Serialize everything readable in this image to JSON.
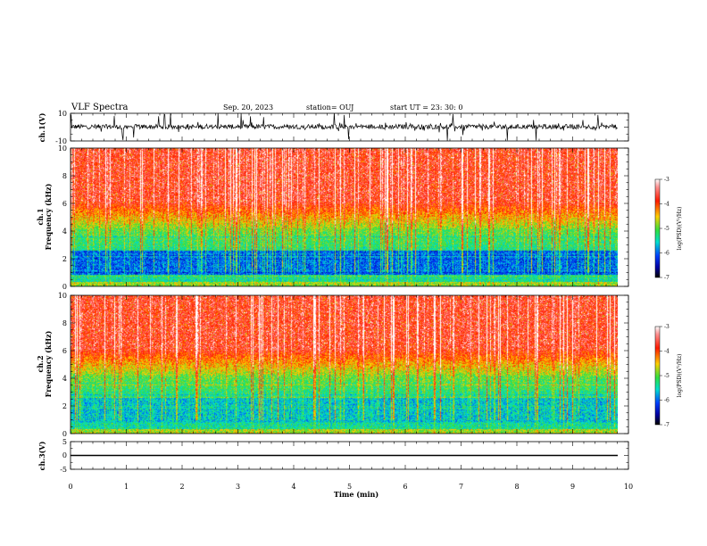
{
  "header": {
    "title": "VLF Spectra",
    "date": "Sep. 20, 2023",
    "station": "station= OUJ",
    "start": "start  UT  =   23: 30: 0"
  },
  "chart_data": [
    {
      "type": "line",
      "title": "",
      "ylabel": "ch.1(V)",
      "ylim": [
        -10,
        10
      ],
      "yticks": [
        "10",
        "-10"
      ],
      "xlim": [
        0,
        10
      ],
      "description_free": true,
      "trace": "noisy waveform around 0 V with spikes",
      "color": "#000000"
    },
    {
      "type": "heatmap",
      "ylabel": "ch.1 Frequency (kHz)",
      "ylabel_top": "ch.1",
      "ylabel_bottom": "Frequency (kHz)",
      "ylim": [
        0,
        10
      ],
      "yticks": [
        "0",
        "2",
        "4",
        "6",
        "8",
        "10"
      ],
      "xlim": [
        0,
        10
      ],
      "colorbar": {
        "label": "log(PSD)(V²/Hz)",
        "ticks": [
          "-3",
          "-4",
          "-5",
          "-6",
          "-7"
        ],
        "range": [
          -7,
          -3
        ]
      }
    },
    {
      "type": "heatmap",
      "ylabel": "ch.2 Frequency (kHz)",
      "ylabel_top": "ch.2",
      "ylabel_bottom": "Frequency (kHz)",
      "ylim": [
        0,
        10
      ],
      "yticks": [
        "0",
        "2",
        "4",
        "6",
        "8",
        "10"
      ],
      "xlim": [
        0,
        10
      ],
      "colorbar": {
        "label": "log(PSD)(V²/Hz)",
        "ticks": [
          "-3",
          "-4",
          "-5",
          "-6",
          "-7"
        ],
        "range": [
          -7,
          -3
        ]
      }
    },
    {
      "type": "line",
      "ylabel": "ch.3(V)",
      "ylim": [
        -5,
        5
      ],
      "yticks": [
        "5",
        "0",
        "-5"
      ],
      "xlim": [
        0,
        10
      ],
      "flat_value": 0,
      "color": "#000000"
    }
  ],
  "xaxis": {
    "label": "Time  (min)",
    "ticks": [
      "0",
      "1",
      "2",
      "3",
      "4",
      "5",
      "6",
      "7",
      "8",
      "9",
      "10"
    ],
    "range": [
      0,
      10
    ]
  }
}
